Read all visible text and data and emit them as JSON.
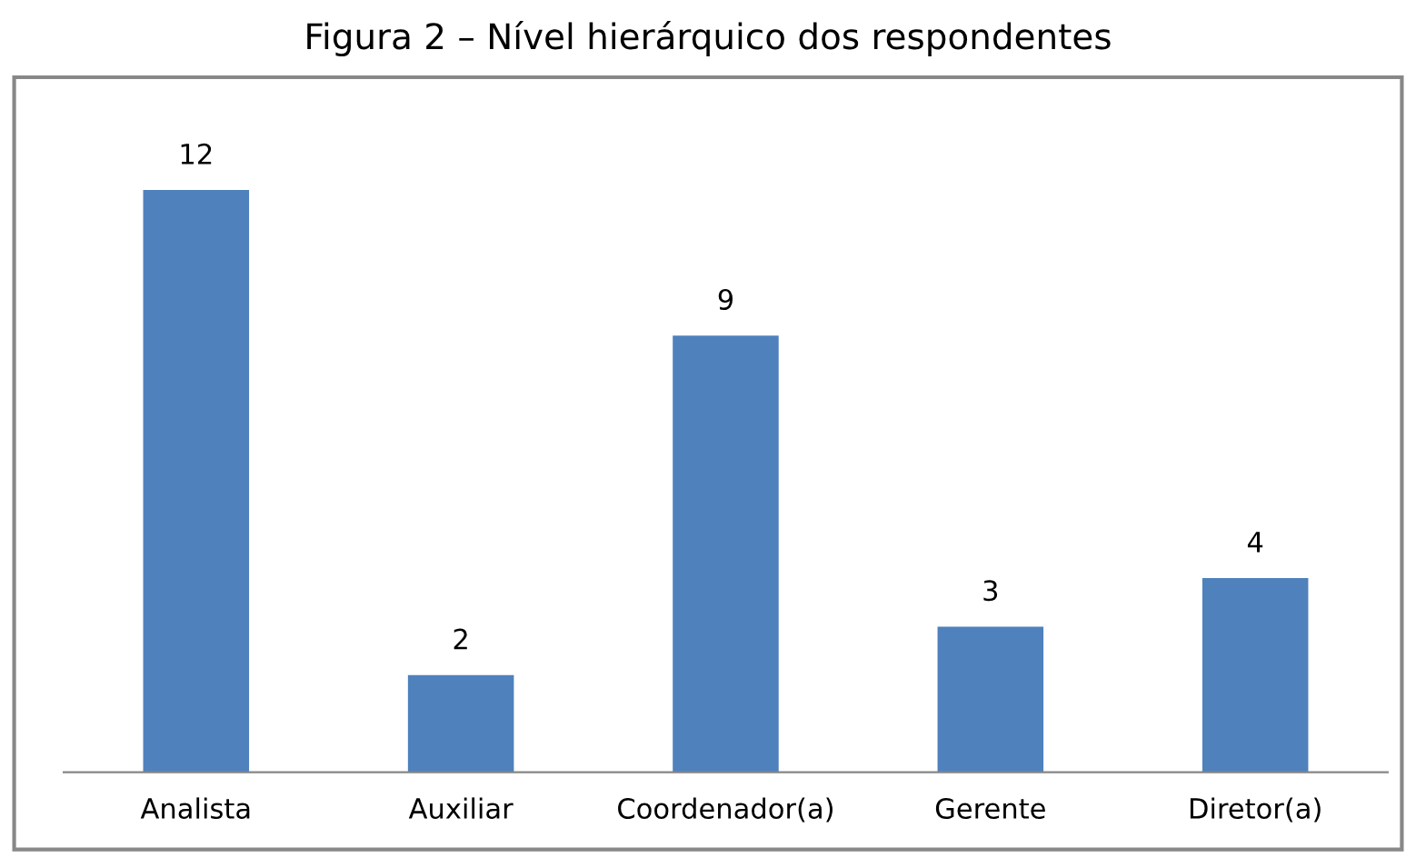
{
  "chart_data": {
    "type": "bar",
    "title": "Figura 2 – Nível hierárquico dos respondentes",
    "categories": [
      "Analista",
      "Auxiliar",
      "Coordenador(a)",
      "Gerente",
      "Diretor(a)"
    ],
    "values": [
      12,
      2,
      9,
      3,
      4
    ],
    "color": "#4f81bd",
    "data_labels": true,
    "grid": false,
    "legend": false
  }
}
